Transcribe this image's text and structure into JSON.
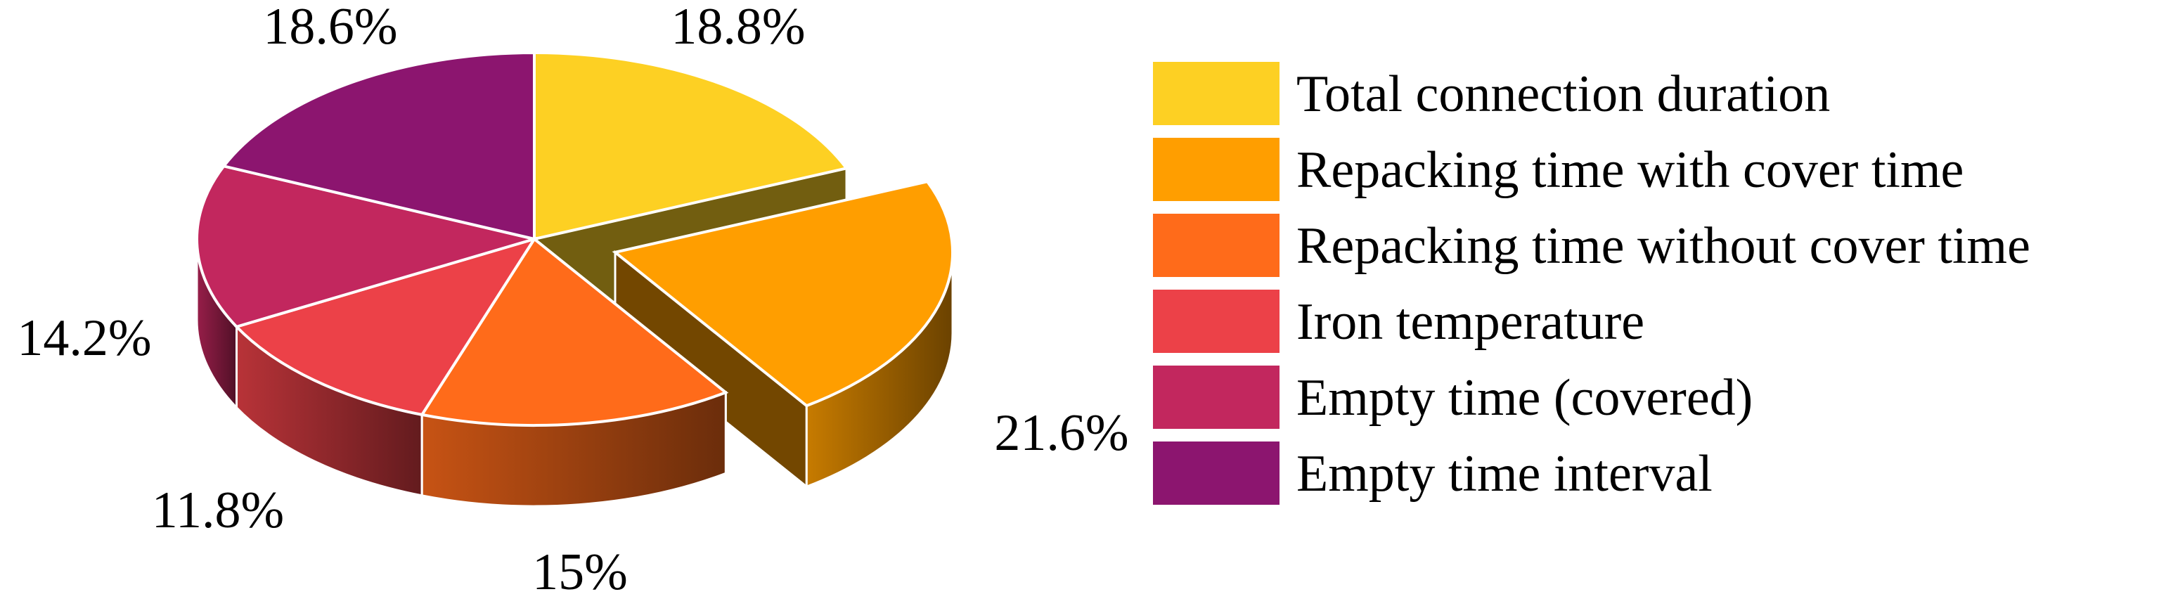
{
  "chart_data": {
    "type": "pie",
    "style": "3d-exploded",
    "exploded_slice": "Repacking time with cover time",
    "legend_position": "right",
    "slices": [
      {
        "label": "Total connection duration",
        "value": 18.8,
        "value_label": "18.8%",
        "color": "#FDD023"
      },
      {
        "label": "Repacking time with cover time",
        "value": 21.6,
        "value_label": "21.6%",
        "color": "#FF9E00"
      },
      {
        "label": "Repacking time without cover time",
        "value": 15,
        "value_label": "15%",
        "color": "#FF6B1A"
      },
      {
        "label": "Iron temperature",
        "value": 11.8,
        "value_label": "11.8%",
        "color": "#EC4148"
      },
      {
        "label": "Empty time (covered)",
        "value": 14.2,
        "value_label": "14.2%",
        "color": "#C2275E"
      },
      {
        "label": "Empty time interval",
        "value": 18.6,
        "value_label": "18.6%",
        "color": "#8C156F"
      }
    ]
  }
}
